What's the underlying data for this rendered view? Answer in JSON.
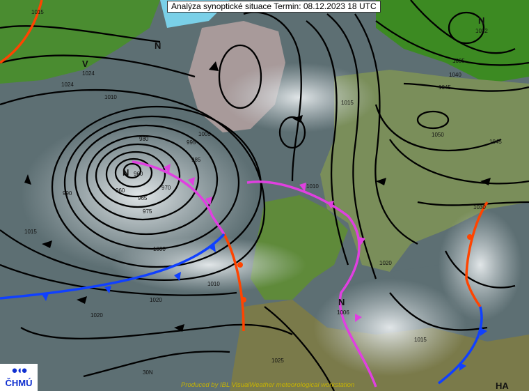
{
  "title": "Analýza synoptické situace Termin: 08.12.2023 18 UTC",
  "logo": {
    "text": "ČHMÚ"
  },
  "credit": "Produced by IBL VisualWeather meteorological workstation",
  "isobar_labels": [
    "1015",
    "1024",
    "1020",
    "1010",
    "1005",
    "1000",
    "995",
    "990",
    "985",
    "980",
    "975",
    "970",
    "965",
    "960",
    "1015",
    "1010",
    "1020",
    "1030",
    "1035",
    "1040",
    "1045",
    "1050",
    "1045",
    "1015",
    "1010",
    "1020",
    "1025",
    "1015"
  ],
  "pressure_centers": [
    {
      "type": "N",
      "value": "960"
    },
    {
      "type": "N",
      "value": "1022"
    },
    {
      "type": "N",
      "value": ""
    },
    {
      "type": "N",
      "value": "1006"
    },
    {
      "type": "V",
      "value": "1024"
    },
    {
      "type": "HA",
      "value": ""
    }
  ],
  "latitude_label": "30N",
  "colors": {
    "ocean": "#5d6f73",
    "land": "#3f8a2a",
    "cloud": "#dde3e6",
    "isobar": "#000000",
    "occluded_front": "#e040e0",
    "warm_front": "#ff4400",
    "cold_front": "#1040ff",
    "logo": "#1030d0",
    "credit": "#c8b400"
  }
}
